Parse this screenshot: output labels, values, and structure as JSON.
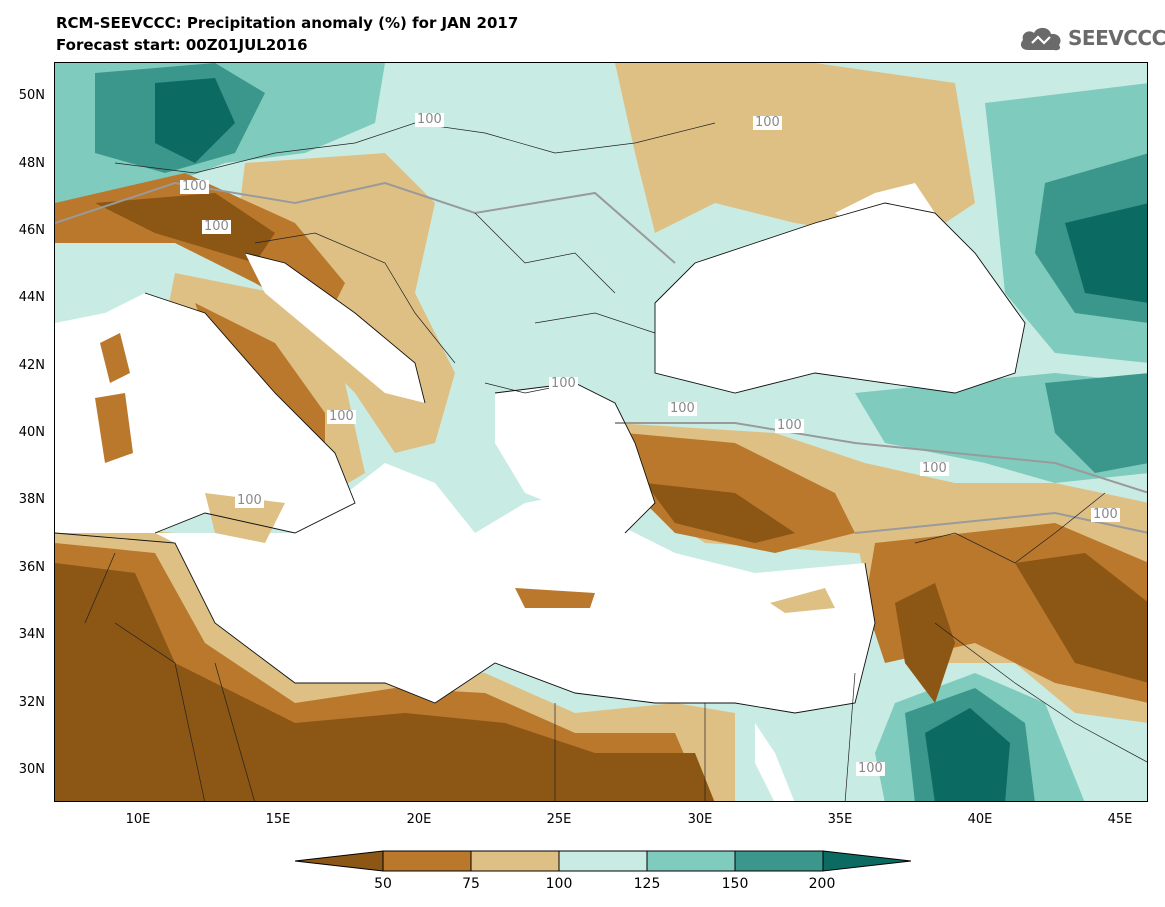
{
  "header": {
    "title": "RCM-SEEVCCC: Precipitation anomaly (%) for JAN 2017",
    "subtitle": "Forecast start: 00Z01JUL2016",
    "logo_text": "SEEVCCC"
  },
  "axes": {
    "y_ticks": [
      "50N",
      "48N",
      "46N",
      "44N",
      "42N",
      "40N",
      "38N",
      "36N",
      "34N",
      "32N",
      "30N"
    ],
    "x_ticks": [
      "10E",
      "15E",
      "20E",
      "25E",
      "30E",
      "35E",
      "40E",
      "45E"
    ]
  },
  "contour_labels": [
    "100",
    "100",
    "100",
    "100",
    "100",
    "100",
    "100",
    "100",
    "100",
    "100",
    "100",
    "100"
  ],
  "legend": {
    "labels": [
      "50",
      "75",
      "100",
      "125",
      "150",
      "200"
    ],
    "colors": [
      "#8c5614",
      "#b9782c",
      "#dfc084",
      "#c8ece4",
      "#7fcbbe",
      "#3b968c",
      "#0b6a62"
    ]
  },
  "colors": {
    "ocean": "#ffffff",
    "very_dry": "#8c5614",
    "dry": "#b9782c",
    "slightly_dry": "#dfc084",
    "slightly_wet": "#c8ece4",
    "wet": "#7fcbbe",
    "very_wet": "#3b968c",
    "extremely_wet": "#0b6a62"
  }
}
